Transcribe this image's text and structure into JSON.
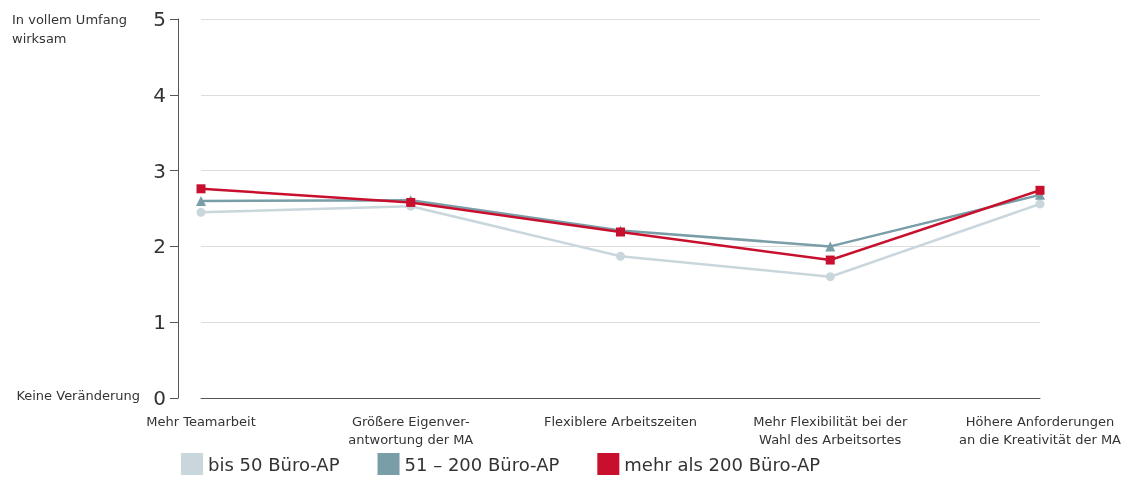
{
  "chart_data": {
    "type": "line",
    "categories": [
      "Mehr Teamarbeit",
      "Größere Eigenver-\nantwortung der MA",
      "Flexiblere Arbeitszeiten",
      "Mehr Flexibilität bei der\nWahl des Arbeitsortes",
      "Höhere Anforderungen\nan die Kreativität der MA"
    ],
    "series": [
      {
        "name": "bis 50 Büro-AP",
        "color": "#c9d7dd",
        "marker": "circle",
        "values": [
          2.45,
          2.53,
          1.87,
          1.6,
          2.56
        ]
      },
      {
        "name": "51 – 200 Büro-AP",
        "color": "#7a9ea8",
        "marker": "triangle",
        "values": [
          2.6,
          2.61,
          2.21,
          2.0,
          2.68
        ]
      },
      {
        "name": "mehr als 200 Büro-AP",
        "color": "#c8102e",
        "marker": "square",
        "values": [
          2.76,
          2.58,
          2.19,
          1.82,
          2.74
        ]
      }
    ],
    "ylim": [
      0,
      5
    ],
    "yticks": [
      0,
      1,
      2,
      3,
      4,
      5
    ],
    "grid": "y",
    "legend": "bottom left",
    "annotations": [
      "In vollem Umfang\nwirksam",
      "Keine Veränderung"
    ]
  }
}
